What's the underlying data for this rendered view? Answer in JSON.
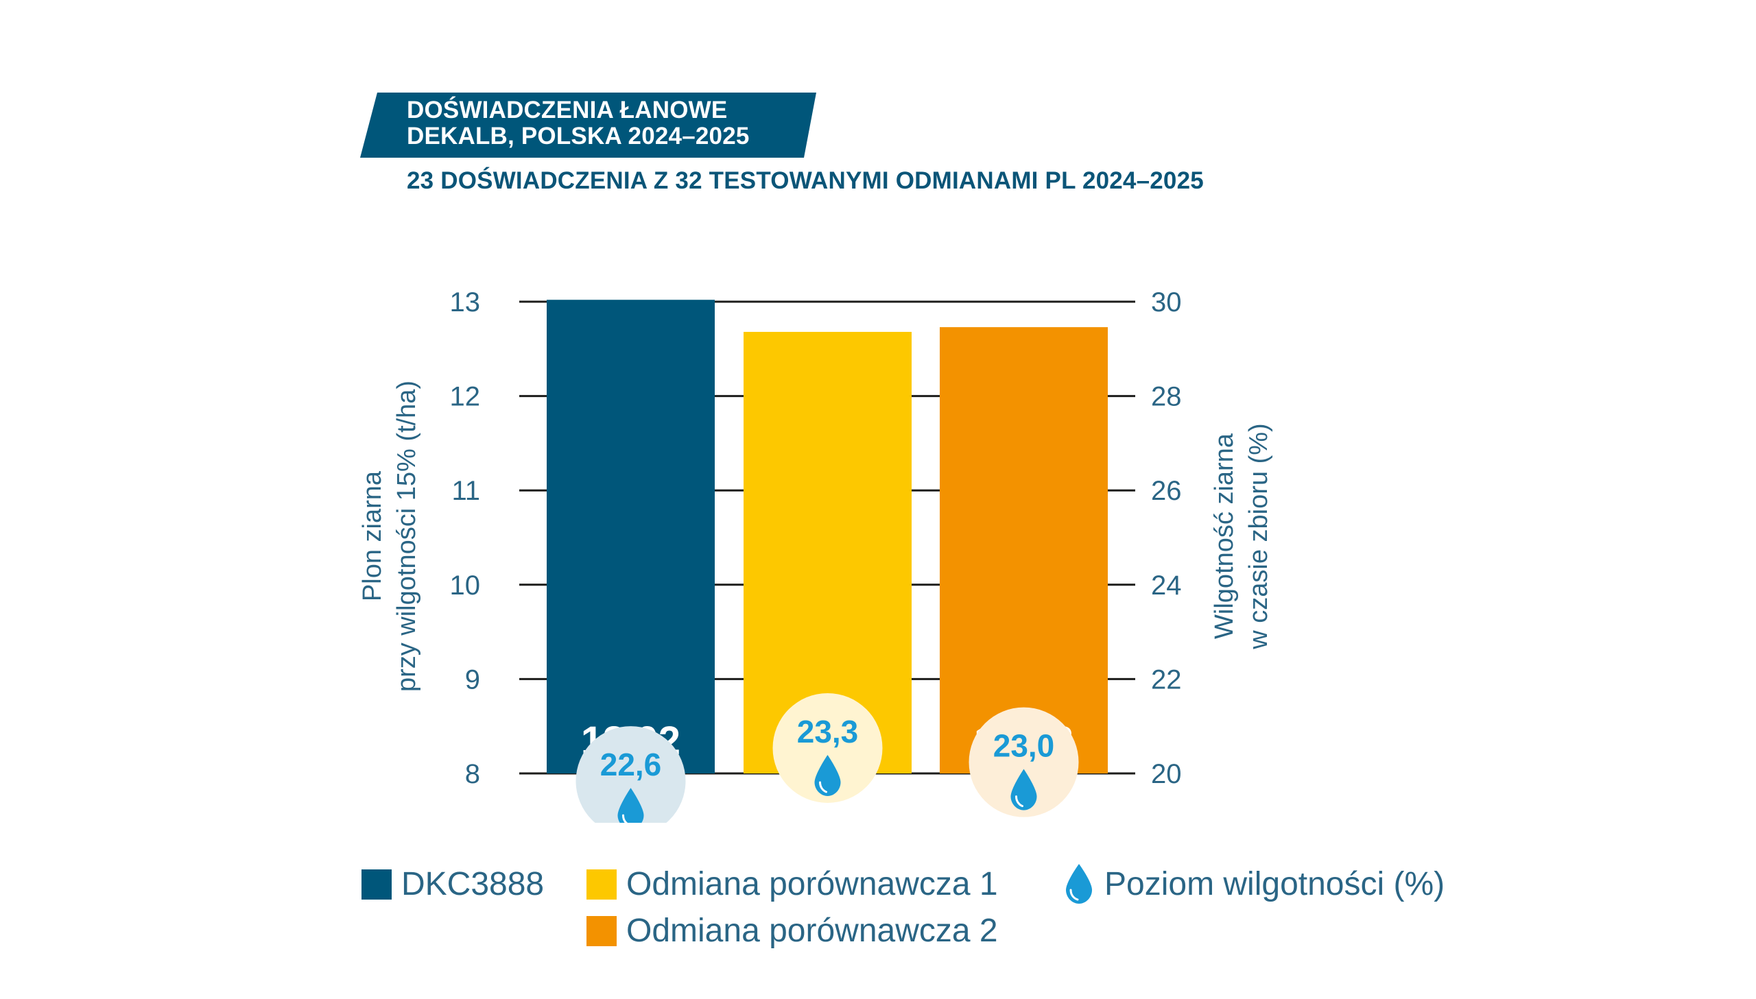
{
  "header": {
    "badge_line1": "DOŚWIADCZENIA ŁANOWE",
    "badge_line2": "DEKALB, POLSKA 2024–2025",
    "subtitle": "23 DOŚWIADCZENIA Z 32 TESTOWANYMI ODMIANAMI PL 2024–2025"
  },
  "colors": {
    "navy": "#00567a",
    "yellow": "#fdc800",
    "orange": "#f39200",
    "drop_blue": "#1a9ad6",
    "axis_text": "#2a6585"
  },
  "chart_data": {
    "type": "bar",
    "categories": [
      "DKC3888",
      "Odmiana porównawcza 1",
      "Odmiana porównawcza 2"
    ],
    "series": [
      {
        "name": "Plon ziarna przy wilgotności 15% (t/ha)",
        "values": [
          13.02,
          12.68,
          12.73
        ],
        "labels": [
          "13,02",
          "12,68",
          "12,73"
        ],
        "colors": [
          "#00567a",
          "#fdc800",
          "#f39200"
        ]
      },
      {
        "name": "Poziom wilgotności (%)",
        "values": [
          22.6,
          23.3,
          23.0
        ],
        "labels": [
          "22,6",
          "23,3",
          "23,0"
        ]
      }
    ],
    "ylabel_left_line1": "Plon ziarna",
    "ylabel_left_line2": "przy wilgotności 15% (t/ha)",
    "ylabel_right_line1": "Wilgotność ziarna",
    "ylabel_right_line2": "w czasie zbioru (%)",
    "ylim_left": [
      8,
      13
    ],
    "ylim_right": [
      20,
      30
    ],
    "yticks_left": [
      "8",
      "9",
      "10",
      "11",
      "12",
      "13"
    ],
    "yticks_right": [
      "20",
      "22",
      "24",
      "26",
      "28",
      "30"
    ],
    "grid": true
  },
  "legend": {
    "items": [
      {
        "label": "DKC3888"
      },
      {
        "label": "Odmiana porównawcza 1"
      },
      {
        "label": "Odmiana porównawcza 2"
      },
      {
        "label": "Poziom wilgotności (%)"
      }
    ]
  }
}
